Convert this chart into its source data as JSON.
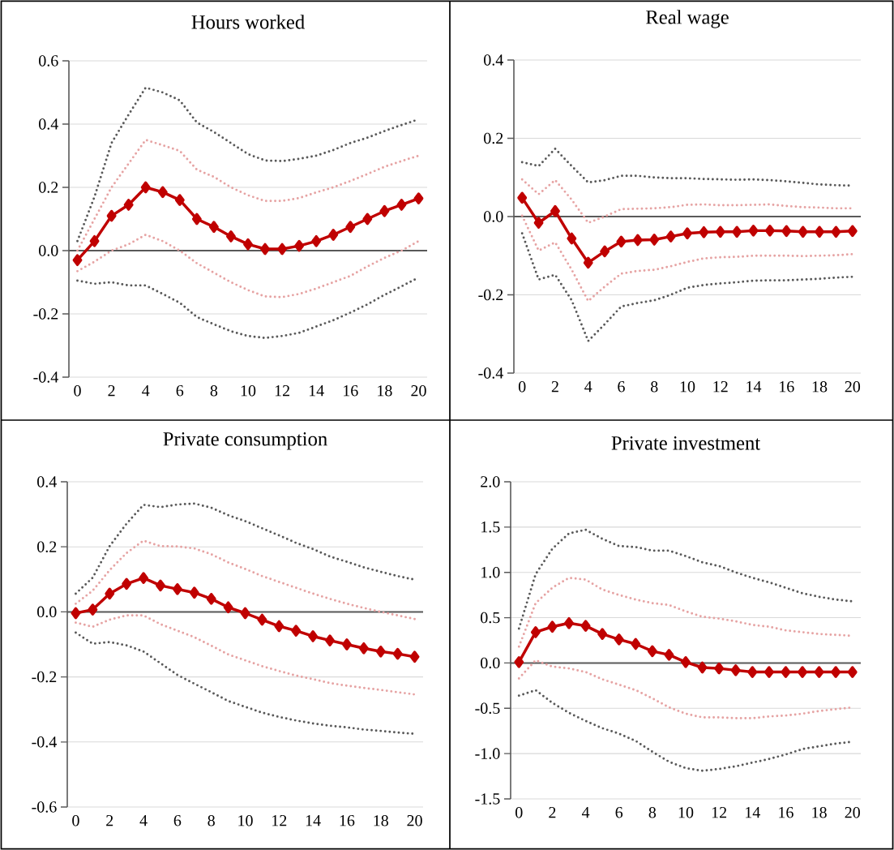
{
  "chart_data": [
    {
      "type": "line",
      "title": "Hours worked",
      "x": [
        0,
        1,
        2,
        3,
        4,
        5,
        6,
        7,
        8,
        9,
        10,
        11,
        12,
        13,
        14,
        15,
        16,
        17,
        18,
        19,
        20
      ],
      "xlim": [
        -0.5,
        20.5
      ],
      "xticks": [
        0,
        2,
        4,
        6,
        8,
        10,
        12,
        14,
        16,
        18,
        20
      ],
      "ylim": [
        -0.4,
        0.6
      ],
      "yticks": [
        {
          "value": -0.4,
          "label": "-0.4"
        },
        {
          "value": -0.2,
          "label": "-0.2"
        },
        {
          "value": 0,
          "label": "0.0"
        },
        {
          "value": 0.2,
          "label": "0.2"
        },
        {
          "value": 0.4,
          "label": "0.4"
        },
        {
          "value": 0.6,
          "label": "0.6"
        }
      ],
      "grid": "y",
      "series": [
        {
          "color": "#595959",
          "line_style": "dotted",
          "marker": "none",
          "values": [
            0.03,
            0.17,
            0.34,
            0.43,
            0.515,
            0.5,
            0.475,
            0.405,
            0.375,
            0.34,
            0.305,
            0.285,
            0.283,
            0.29,
            0.3,
            0.318,
            0.34,
            0.357,
            0.378,
            0.397,
            0.415
          ]
        },
        {
          "color": "#e6a3a3",
          "line_style": "dotted",
          "marker": "none",
          "values": [
            0.0,
            0.1,
            0.2,
            0.275,
            0.35,
            0.333,
            0.315,
            0.256,
            0.233,
            0.2,
            0.175,
            0.157,
            0.157,
            0.166,
            0.184,
            0.2,
            0.22,
            0.242,
            0.265,
            0.283,
            0.3
          ]
        },
        {
          "color": "#e6a3a3",
          "line_style": "dotted",
          "marker": "none",
          "values": [
            -0.065,
            -0.035,
            0.0,
            0.02,
            0.05,
            0.03,
            0.0,
            -0.04,
            -0.07,
            -0.1,
            -0.125,
            -0.145,
            -0.147,
            -0.137,
            -0.12,
            -0.1,
            -0.08,
            -0.05,
            -0.023,
            0.0,
            0.03
          ]
        },
        {
          "color": "#595959",
          "line_style": "dotted",
          "marker": "none",
          "values": [
            -0.095,
            -0.105,
            -0.1,
            -0.11,
            -0.11,
            -0.137,
            -0.165,
            -0.21,
            -0.233,
            -0.255,
            -0.27,
            -0.276,
            -0.27,
            -0.26,
            -0.24,
            -0.22,
            -0.196,
            -0.17,
            -0.14,
            -0.113,
            -0.085
          ]
        },
        {
          "color": "#c00000",
          "line_style": "solid",
          "marker": "diamond",
          "values": [
            -0.03,
            0.03,
            0.11,
            0.145,
            0.2,
            0.185,
            0.16,
            0.1,
            0.075,
            0.045,
            0.02,
            0.005,
            0.005,
            0.015,
            0.03,
            0.05,
            0.075,
            0.1,
            0.125,
            0.145,
            0.165
          ]
        }
      ]
    },
    {
      "type": "line",
      "title": "Real wage",
      "x": [
        0,
        1,
        2,
        3,
        4,
        5,
        6,
        7,
        8,
        9,
        10,
        11,
        12,
        13,
        14,
        15,
        16,
        17,
        18,
        19,
        20
      ],
      "xlim": [
        -0.5,
        20.5
      ],
      "xticks": [
        0,
        2,
        4,
        6,
        8,
        10,
        12,
        14,
        16,
        18,
        20
      ],
      "ylim": [
        -0.4,
        0.4
      ],
      "yticks": [
        {
          "value": -0.4,
          "label": "-0.4"
        },
        {
          "value": -0.2,
          "label": "-0.2"
        },
        {
          "value": 0,
          "label": "0.0"
        },
        {
          "value": 0.2,
          "label": "0.2"
        },
        {
          "value": 0.4,
          "label": "0.4"
        }
      ],
      "grid": "y",
      "series": [
        {
          "color": "#595959",
          "line_style": "dotted",
          "marker": "none",
          "values": [
            0.139,
            0.129,
            0.173,
            0.129,
            0.087,
            0.093,
            0.104,
            0.104,
            0.1,
            0.098,
            0.098,
            0.096,
            0.095,
            0.094,
            0.095,
            0.093,
            0.09,
            0.086,
            0.082,
            0.08,
            0.079
          ]
        },
        {
          "color": "#e6a3a3",
          "line_style": "dotted",
          "marker": "none",
          "values": [
            0.095,
            0.057,
            0.093,
            0.043,
            -0.016,
            0.0,
            0.019,
            0.02,
            0.021,
            0.024,
            0.03,
            0.031,
            0.029,
            0.029,
            0.03,
            0.031,
            0.027,
            0.024,
            0.023,
            0.021,
            0.021
          ]
        },
        {
          "color": "#e6a3a3",
          "line_style": "dotted",
          "marker": "none",
          "values": [
            0.002,
            -0.087,
            -0.066,
            -0.136,
            -0.216,
            -0.179,
            -0.146,
            -0.139,
            -0.136,
            -0.127,
            -0.116,
            -0.107,
            -0.104,
            -0.103,
            -0.1,
            -0.1,
            -0.1,
            -0.101,
            -0.1,
            -0.099,
            -0.096
          ]
        },
        {
          "color": "#595959",
          "line_style": "dotted",
          "marker": "none",
          "values": [
            -0.043,
            -0.161,
            -0.149,
            -0.214,
            -0.318,
            -0.275,
            -0.23,
            -0.221,
            -0.214,
            -0.2,
            -0.182,
            -0.175,
            -0.171,
            -0.168,
            -0.164,
            -0.163,
            -0.163,
            -0.161,
            -0.159,
            -0.156,
            -0.154
          ]
        },
        {
          "color": "#c00000",
          "line_style": "solid",
          "marker": "diamond",
          "values": [
            0.048,
            -0.016,
            0.014,
            -0.056,
            -0.118,
            -0.089,
            -0.064,
            -0.06,
            -0.059,
            -0.051,
            -0.043,
            -0.04,
            -0.039,
            -0.039,
            -0.036,
            -0.036,
            -0.037,
            -0.039,
            -0.039,
            -0.039,
            -0.037
          ]
        }
      ]
    },
    {
      "type": "line",
      "title": "Private consumption",
      "x": [
        0,
        1,
        2,
        3,
        4,
        5,
        6,
        7,
        8,
        9,
        10,
        11,
        12,
        13,
        14,
        15,
        16,
        17,
        18,
        19,
        20
      ],
      "xlim": [
        -0.5,
        20.5
      ],
      "xticks": [
        0,
        2,
        4,
        6,
        8,
        10,
        12,
        14,
        16,
        18,
        20
      ],
      "ylim": [
        -0.6,
        0.4
      ],
      "yticks": [
        {
          "value": -0.6,
          "label": "-0.6"
        },
        {
          "value": -0.4,
          "label": "-0.4"
        },
        {
          "value": -0.2,
          "label": "-0.2"
        },
        {
          "value": 0,
          "label": "0.0"
        },
        {
          "value": 0.2,
          "label": "0.2"
        },
        {
          "value": 0.4,
          "label": "0.4"
        }
      ],
      "grid": "y",
      "series": [
        {
          "color": "#595959",
          "line_style": "dotted",
          "marker": "none",
          "values": [
            0.056,
            0.105,
            0.202,
            0.271,
            0.329,
            0.322,
            0.33,
            0.333,
            0.32,
            0.297,
            0.279,
            0.257,
            0.235,
            0.212,
            0.193,
            0.17,
            0.154,
            0.137,
            0.123,
            0.11,
            0.099
          ]
        },
        {
          "color": "#e6a3a3",
          "line_style": "dotted",
          "marker": "none",
          "values": [
            0.025,
            0.065,
            0.128,
            0.181,
            0.219,
            0.202,
            0.201,
            0.195,
            0.177,
            0.152,
            0.132,
            0.11,
            0.092,
            0.074,
            0.056,
            0.04,
            0.025,
            0.012,
            0.0,
            -0.011,
            -0.022
          ]
        },
        {
          "color": "#e6a3a3",
          "line_style": "dotted",
          "marker": "none",
          "values": [
            -0.033,
            -0.046,
            -0.024,
            -0.011,
            -0.011,
            -0.038,
            -0.058,
            -0.078,
            -0.104,
            -0.131,
            -0.149,
            -0.167,
            -0.182,
            -0.196,
            -0.207,
            -0.219,
            -0.227,
            -0.234,
            -0.24,
            -0.247,
            -0.254
          ]
        },
        {
          "color": "#595959",
          "line_style": "dotted",
          "marker": "none",
          "values": [
            -0.064,
            -0.098,
            -0.093,
            -0.103,
            -0.122,
            -0.158,
            -0.194,
            -0.221,
            -0.247,
            -0.274,
            -0.292,
            -0.31,
            -0.323,
            -0.334,
            -0.343,
            -0.35,
            -0.355,
            -0.362,
            -0.366,
            -0.371,
            -0.375
          ]
        },
        {
          "color": "#c00000",
          "line_style": "solid",
          "marker": "diamond",
          "values": [
            -0.004,
            0.007,
            0.056,
            0.086,
            0.104,
            0.081,
            0.07,
            0.059,
            0.04,
            0.014,
            -0.004,
            -0.024,
            -0.044,
            -0.058,
            -0.075,
            -0.088,
            -0.1,
            -0.112,
            -0.122,
            -0.129,
            -0.138
          ]
        }
      ]
    },
    {
      "type": "line",
      "title": "Private investment",
      "x": [
        0,
        1,
        2,
        3,
        4,
        5,
        6,
        7,
        8,
        9,
        10,
        11,
        12,
        13,
        14,
        15,
        16,
        17,
        18,
        19,
        20
      ],
      "xlim": [
        -0.5,
        20.5
      ],
      "xticks": [
        0,
        2,
        4,
        6,
        8,
        10,
        12,
        14,
        16,
        18,
        20
      ],
      "ylim": [
        -1.5,
        2.0
      ],
      "yticks": [
        {
          "value": -1.5,
          "label": "-1.5"
        },
        {
          "value": -1.0,
          "label": "-1.0"
        },
        {
          "value": -0.5,
          "label": "-0.5"
        },
        {
          "value": 0,
          "label": "0.0"
        },
        {
          "value": 0.5,
          "label": "0.5"
        },
        {
          "value": 1.0,
          "label": "1.0"
        },
        {
          "value": 1.5,
          "label": "1.5"
        },
        {
          "value": 2.0,
          "label": "2.0"
        }
      ],
      "grid": "y",
      "series": [
        {
          "color": "#595959",
          "line_style": "dotted",
          "marker": "none",
          "values": [
            0.38,
            0.98,
            1.26,
            1.43,
            1.47,
            1.37,
            1.29,
            1.28,
            1.24,
            1.24,
            1.18,
            1.11,
            1.07,
            1.0,
            0.94,
            0.89,
            0.83,
            0.77,
            0.73,
            0.7,
            0.68
          ]
        },
        {
          "color": "#e6a3a3",
          "line_style": "dotted",
          "marker": "none",
          "values": [
            0.18,
            0.66,
            0.83,
            0.94,
            0.92,
            0.81,
            0.75,
            0.7,
            0.66,
            0.64,
            0.57,
            0.51,
            0.49,
            0.46,
            0.42,
            0.4,
            0.36,
            0.34,
            0.32,
            0.31,
            0.3
          ]
        },
        {
          "color": "#e6a3a3",
          "line_style": "dotted",
          "marker": "none",
          "values": [
            -0.17,
            0.03,
            -0.04,
            -0.06,
            -0.1,
            -0.18,
            -0.24,
            -0.3,
            -0.39,
            -0.49,
            -0.56,
            -0.6,
            -0.6,
            -0.61,
            -0.61,
            -0.59,
            -0.58,
            -0.56,
            -0.53,
            -0.51,
            -0.49
          ]
        },
        {
          "color": "#595959",
          "line_style": "dotted",
          "marker": "none",
          "values": [
            -0.36,
            -0.3,
            -0.44,
            -0.55,
            -0.64,
            -0.72,
            -0.78,
            -0.86,
            -0.98,
            -1.09,
            -1.16,
            -1.19,
            -1.17,
            -1.14,
            -1.1,
            -1.06,
            -1.01,
            -0.95,
            -0.92,
            -0.89,
            -0.87
          ]
        },
        {
          "color": "#c00000",
          "line_style": "solid",
          "marker": "diamond",
          "values": [
            0.01,
            0.34,
            0.4,
            0.44,
            0.41,
            0.32,
            0.26,
            0.21,
            0.13,
            0.09,
            0.01,
            -0.05,
            -0.06,
            -0.08,
            -0.1,
            -0.1,
            -0.1,
            -0.1,
            -0.1,
            -0.1,
            -0.1
          ]
        }
      ]
    }
  ]
}
